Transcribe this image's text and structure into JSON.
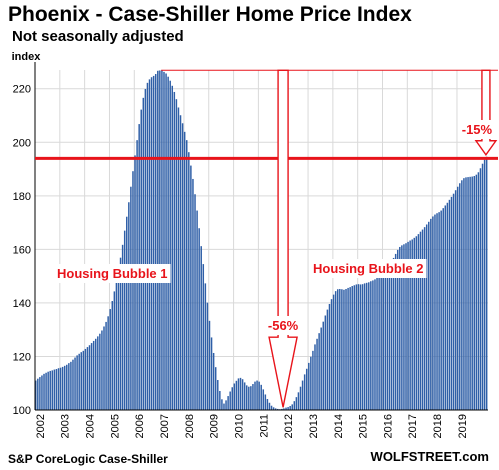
{
  "title": "Phoenix - Case-Shiller Home Price Index",
  "subtitle": "Not seasonally adjusted",
  "source": "S&P CoreLogic Case-Shiller",
  "brand": "WOLFSTREET.com",
  "colors": {
    "bar": "#2f5fa7",
    "reference_line": "#e8141b",
    "annotation": "#e8141b",
    "grid": "#d9d9d9"
  },
  "chart_data": {
    "type": "bar",
    "ylabel": "index",
    "ylim": [
      100,
      227
    ],
    "yticks": [
      100,
      120,
      140,
      160,
      180,
      200,
      220
    ],
    "x_tick_labels": [
      "2002",
      "2003",
      "2004",
      "2005",
      "2006",
      "2007",
      "2008",
      "2009",
      "2010",
      "2011",
      "2012",
      "2013",
      "2014",
      "2015",
      "2016",
      "2017",
      "2018",
      "2019"
    ],
    "frequency": "monthly",
    "start": "2002-01",
    "grid": true,
    "reference_line": 194,
    "annotations": [
      "Housing Bubble 1",
      "Housing Bubble 2",
      "-56%",
      "-15%"
    ],
    "series": [
      {
        "values": [
          111.0,
          111.7,
          112.3,
          112.9,
          113.5,
          113.9,
          114.3,
          114.6,
          114.8,
          115.1,
          115.3,
          115.6,
          115.8,
          116.1,
          116.5,
          116.9,
          117.5,
          118.0,
          118.8,
          119.6,
          120.4,
          121.0,
          121.6,
          122.1,
          122.8,
          123.5,
          124.2,
          125.0,
          125.8,
          126.6,
          127.5,
          128.5,
          129.7,
          131.2,
          132.9,
          135.0,
          137.7,
          140.7,
          144.3,
          148.1,
          152.3,
          156.9,
          161.7,
          167.0,
          172.2,
          177.6,
          183.4,
          189.2,
          195.1,
          200.8,
          206.8,
          212.2,
          216.6,
          219.9,
          222.2,
          223.5,
          224.3,
          224.8,
          225.5,
          226.7,
          226.8,
          226.9,
          226.3,
          225.7,
          224.5,
          223.0,
          221.1,
          218.8,
          216.1,
          213.0,
          210.1,
          207.1,
          203.9,
          200.8,
          196.3,
          191.3,
          186.3,
          180.6,
          174.5,
          167.9,
          161.2,
          154.5,
          147.3,
          140.1,
          133.3,
          127.1,
          121.3,
          116.0,
          111.2,
          107.1,
          104.0,
          102.4,
          103.6,
          105.2,
          106.9,
          108.5,
          109.9,
          110.9,
          111.8,
          112.0,
          111.5,
          110.3,
          109.2,
          108.7,
          108.9,
          109.7,
          110.6,
          111.0,
          110.6,
          109.4,
          107.7,
          105.8,
          104.1,
          102.7,
          101.6,
          101.0,
          100.6,
          100.4,
          100.3,
          100.4,
          100.6,
          100.9,
          101.1,
          101.5,
          102.1,
          103.3,
          104.8,
          106.6,
          108.7,
          111.0,
          113.3,
          115.4,
          117.6,
          119.9,
          122.1,
          124.5,
          126.6,
          128.7,
          130.8,
          133.0,
          135.3,
          137.5,
          139.6,
          141.4,
          143.1,
          144.4,
          145.1,
          145.2,
          145.1,
          144.9,
          145.2,
          145.6,
          145.9,
          146.3,
          146.6,
          146.9,
          147.0,
          146.9,
          147.0,
          147.3,
          147.5,
          147.7,
          148.1,
          148.4,
          148.8,
          149.3,
          149.7,
          150.4,
          151.2,
          152.1,
          152.9,
          153.9,
          155.2,
          156.8,
          158.3,
          159.8,
          160.9,
          161.5,
          161.9,
          162.3,
          162.8,
          163.3,
          163.7,
          164.3,
          164.9,
          165.7,
          166.6,
          167.4,
          168.3,
          169.3,
          170.3,
          171.4,
          172.3,
          173.0,
          173.5,
          173.9,
          174.5,
          175.4,
          176.4,
          177.4,
          178.5,
          179.6,
          180.8,
          182.1,
          183.4,
          184.7,
          185.8,
          186.6,
          186.9,
          187.0,
          187.1,
          187.2,
          187.4,
          187.9,
          188.8,
          190.3,
          192.0,
          193.5,
          194.6
        ]
      }
    ]
  }
}
